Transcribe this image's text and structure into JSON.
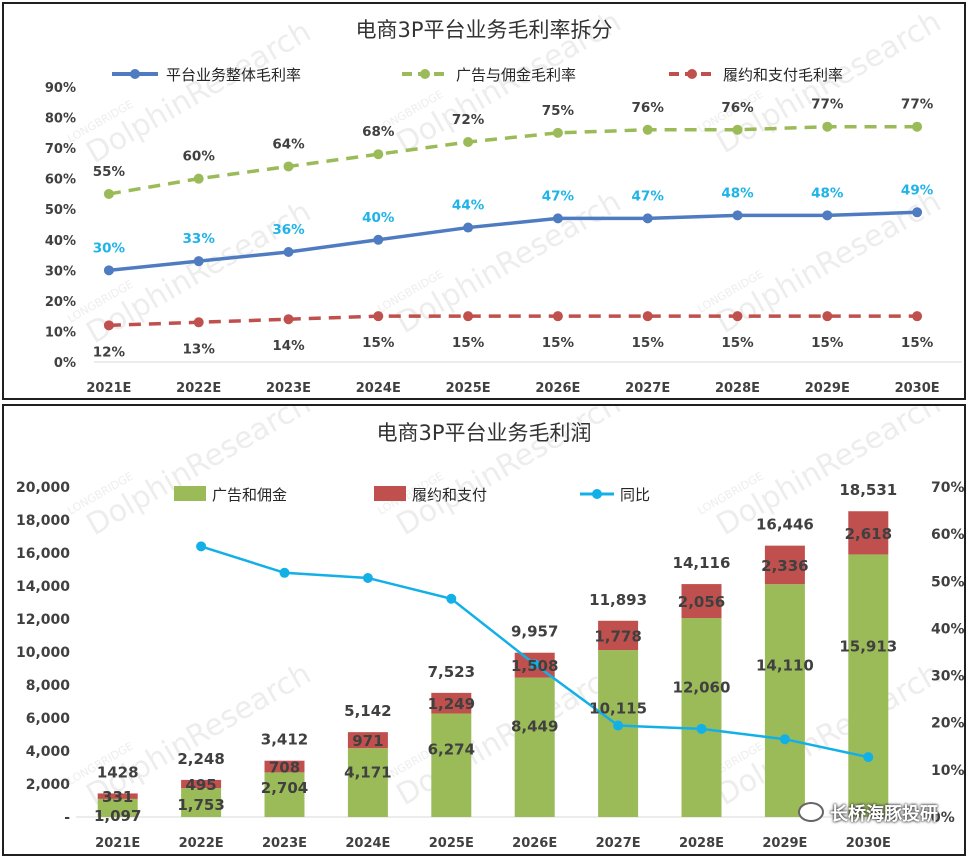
{
  "watermark": "DolphinResearch",
  "watermark_small": "LONGBRIDGE",
  "brand_label": "长桥海豚投研",
  "chart_data": [
    {
      "type": "line",
      "title": "电商3P平台业务毛利率拆分",
      "categories": [
        "2021E",
        "2022E",
        "2023E",
        "2024E",
        "2025E",
        "2026E",
        "2027E",
        "2028E",
        "2029E",
        "2030E"
      ],
      "ylim": [
        0,
        90
      ],
      "yticks": [
        "0%",
        "10%",
        "20%",
        "30%",
        "40%",
        "50%",
        "60%",
        "70%",
        "80%",
        "90%"
      ],
      "series": [
        {
          "name": "平台业务整体毛利率",
          "color": "#4f7cc1",
          "dash": "none",
          "values": [
            30,
            33,
            36,
            40,
            44,
            47,
            47,
            48,
            48,
            49
          ],
          "labels": [
            "30%",
            "33%",
            "36%",
            "40%",
            "44%",
            "47%",
            "47%",
            "48%",
            "48%",
            "49%"
          ]
        },
        {
          "name": "广告与佣金毛利率",
          "color": "#9bbb59",
          "dash": "dashed",
          "values": [
            55,
            60,
            64,
            68,
            72,
            75,
            76,
            76,
            77,
            77
          ],
          "labels": [
            "55%",
            "60%",
            "64%",
            "68%",
            "72%",
            "75%",
            "76%",
            "76%",
            "77%",
            "77%"
          ]
        },
        {
          "name": "履约和支付毛利率",
          "color": "#c0504d",
          "dash": "dashed",
          "values": [
            12,
            13,
            14,
            15,
            15,
            15,
            15,
            15,
            15,
            15
          ],
          "labels": [
            "12%",
            "13%",
            "14%",
            "15%",
            "15%",
            "15%",
            "15%",
            "15%",
            "15%",
            "15%"
          ]
        }
      ]
    },
    {
      "type": "bar",
      "stacked": true,
      "title": "电商3P平台业务毛利润",
      "categories": [
        "2021E",
        "2022E",
        "2023E",
        "2024E",
        "2025E",
        "2026E",
        "2027E",
        "2028E",
        "2029E",
        "2030E"
      ],
      "ylim": [
        0,
        20000
      ],
      "yticks": [
        "-",
        "2,000",
        "4,000",
        "6,000",
        "8,000",
        "10,000",
        "12,000",
        "14,000",
        "16,000",
        "18,000",
        "20,000"
      ],
      "y2lim": [
        0,
        70
      ],
      "y2ticks": [
        "0%",
        "10%",
        "20%",
        "30%",
        "40%",
        "50%",
        "60%",
        "70%"
      ],
      "series": [
        {
          "name": "广告和佣金",
          "color": "#9bbb59",
          "values": [
            1097,
            1753,
            2704,
            4171,
            6274,
            8449,
            10115,
            12060,
            14110,
            15913
          ],
          "labels": [
            "1,097",
            "1,753",
            "2,704",
            "4,171",
            "6,274",
            "8,449",
            "10,115",
            "12,060",
            "14,110",
            "15,913"
          ]
        },
        {
          "name": "履约和支付",
          "color": "#c0504d",
          "values": [
            331,
            495,
            708,
            971,
            1249,
            1508,
            1778,
            2056,
            2336,
            2618
          ],
          "labels": [
            "331",
            "495",
            "708",
            "971",
            "1,249",
            "1,508",
            "1,778",
            "2,056",
            "2,336",
            "2,618"
          ]
        }
      ],
      "totals": [
        1428,
        2248,
        3412,
        5142,
        7523,
        9957,
        11893,
        14116,
        16446,
        18531
      ],
      "total_labels": [
        "1428",
        "2,248",
        "3,412",
        "5,142",
        "7,523",
        "9,957",
        "11,893",
        "14,116",
        "16,446",
        "18,531"
      ],
      "line": {
        "name": "同比",
        "color": "#13b0e8",
        "axis": "right",
        "values": [
          null,
          57.4,
          51.8,
          50.7,
          46.3,
          32.4,
          19.4,
          18.7,
          16.5,
          12.7
        ]
      }
    }
  ]
}
